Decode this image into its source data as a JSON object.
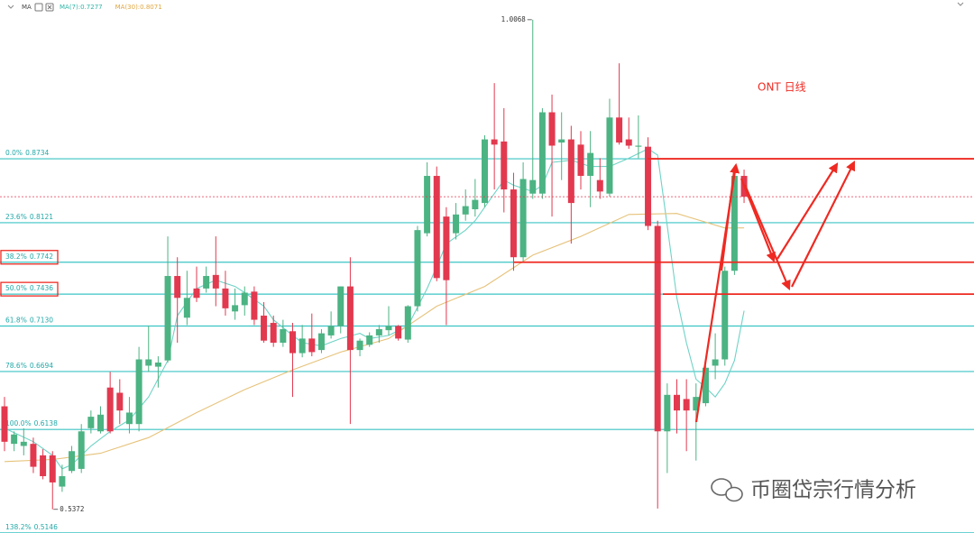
{
  "chart_data": {
    "type": "candlestick",
    "indicator": "MA",
    "annotation": "ONT 日线",
    "watermark": "币圈岱宗行情分析",
    "ylim": [
      0.5145,
      1.0257
    ],
    "up_color": "#4cb383",
    "down_color": "#e2394f",
    "fib_color": "#3cc4c4",
    "emphasis_color": "#ee2a22",
    "fib_levels": [
      {
        "ratio": "0.0%",
        "price": 0.8734,
        "emphasis": true
      },
      {
        "ratio": "23.6%",
        "price": 0.8121
      },
      {
        "ratio": "38.2%",
        "price": 0.7742,
        "emphasis": true,
        "boxed": true
      },
      {
        "ratio": "50.0%",
        "price": 0.7436,
        "emphasis": true,
        "boxed": true
      },
      {
        "ratio": "61.8%",
        "price": {
          "value": 0.713,
          "label": "0.7130"
        }
      },
      {
        "ratio": "78.6%",
        "price": 0.6694
      },
      {
        "ratio": "100.0%",
        "price": 0.6138
      },
      {
        "ratio": "138.2%",
        "price": 0.5146
      }
    ],
    "ma_series": [
      {
        "name": "MA(7):",
        "color": "#6fd3c6",
        "label_color": "#2fb5a6",
        "x": [
          0,
          3,
          5,
          6,
          7,
          9,
          11,
          13,
          15,
          17,
          18,
          20,
          22,
          24,
          25,
          27,
          28,
          30,
          31,
          33,
          35,
          37,
          38,
          40,
          42,
          44,
          45,
          46,
          48,
          49,
          51,
          52,
          53,
          55,
          56,
          57,
          59,
          61,
          63,
          65,
          67,
          68,
          69,
          70,
          71,
          72,
          73,
          74,
          75,
          76,
          77
        ],
        "values": [
          0.615,
          0.602,
          0.589,
          0.576,
          0.58,
          0.598,
          0.612,
          0.623,
          0.645,
          0.68,
          0.723,
          0.749,
          0.757,
          0.751,
          0.745,
          0.732,
          0.719,
          0.704,
          0.697,
          0.694,
          0.701,
          0.706,
          0.701,
          0.704,
          0.713,
          0.749,
          0.77,
          0.792,
          0.805,
          0.814,
          0.84,
          0.853,
          0.848,
          0.842,
          0.848,
          0.87,
          0.872,
          0.866,
          0.866,
          0.874,
          0.883,
          0.877,
          0.809,
          0.74,
          0.697,
          0.662,
          0.654,
          0.645,
          0.658,
          0.68,
          0.7277
        ]
      },
      {
        "name": "MA(30):",
        "color": "#e6c27a",
        "label_color": "#e0a640",
        "x": [
          0,
          5,
          10,
          15,
          20,
          25,
          30,
          35,
          40,
          45,
          50,
          55,
          60,
          65,
          70,
          75,
          77
        ],
        "values": [
          0.583,
          0.585,
          0.591,
          0.606,
          0.63,
          0.652,
          0.671,
          0.688,
          0.701,
          0.732,
          0.751,
          0.781,
          0.799,
          0.82,
          0.821,
          0.807,
          0.8071
        ]
      }
    ],
    "ohlc": [
      [
        0.636,
        0.645,
        0.593,
        0.602
      ],
      [
        0.6,
        0.612,
        0.593,
        0.609
      ],
      [
        0.598,
        0.615,
        0.589,
        0.602
      ],
      [
        0.6,
        0.606,
        0.572,
        0.578
      ],
      [
        0.589,
        0.595,
        0.566,
        0.569
      ],
      [
        0.589,
        0.593,
        0.5372,
        0.563
      ],
      [
        0.559,
        0.58,
        0.554,
        0.569
      ],
      [
        0.574,
        0.598,
        0.572,
        0.593
      ],
      [
        0.576,
        0.619,
        0.572,
        0.612
      ],
      [
        0.615,
        0.632,
        0.61,
        0.626
      ],
      [
        0.612,
        0.636,
        0.61,
        0.628
      ],
      [
        0.654,
        0.669,
        0.61,
        0.612
      ],
      [
        0.649,
        0.662,
        0.619,
        0.632
      ],
      [
        0.619,
        0.645,
        0.61,
        0.63
      ],
      [
        0.619,
        0.693,
        0.612,
        0.681
      ],
      [
        0.675,
        0.713,
        0.669,
        0.681
      ],
      [
        0.674,
        0.684,
        0.654,
        0.678
      ],
      [
        0.68,
        0.799,
        0.678,
        0.761
      ],
      [
        0.761,
        0.779,
        0.697,
        0.74
      ],
      [
        0.721,
        0.766,
        0.714,
        0.74
      ],
      [
        0.749,
        0.77,
        0.736,
        0.74
      ],
      [
        0.749,
        0.77,
        0.745,
        0.761
      ],
      [
        0.762,
        0.799,
        0.732,
        0.749
      ],
      [
        0.749,
        0.766,
        0.723,
        0.73
      ],
      [
        0.727,
        0.749,
        0.719,
        0.733
      ],
      [
        0.733,
        0.751,
        0.723,
        0.745
      ],
      [
        0.746,
        0.751,
        0.714,
        0.719
      ],
      [
        0.723,
        0.736,
        0.697,
        0.699
      ],
      [
        0.716,
        0.723,
        0.693,
        0.697
      ],
      [
        0.697,
        0.719,
        0.693,
        0.71
      ],
      [
        0.708,
        0.716,
        0.645,
        0.687
      ],
      [
        0.687,
        0.714,
        0.683,
        0.701
      ],
      [
        0.701,
        0.725,
        0.684,
        0.688
      ],
      [
        0.69,
        0.71,
        0.687,
        0.706
      ],
      [
        0.704,
        0.727,
        0.701,
        0.713
      ],
      [
        0.713,
        0.751,
        0.706,
        0.751
      ],
      [
        0.751,
        0.779,
        0.619,
        0.69
      ],
      [
        0.69,
        0.701,
        0.684,
        0.699
      ],
      [
        0.695,
        0.707,
        0.693,
        0.704
      ],
      [
        0.704,
        0.714,
        0.697,
        0.71
      ],
      [
        0.709,
        0.732,
        0.704,
        0.713
      ],
      [
        0.713,
        0.714,
        0.699,
        0.701
      ],
      [
        0.7,
        0.733,
        0.697,
        0.732
      ],
      [
        0.732,
        0.809,
        0.727,
        0.805
      ],
      [
        0.802,
        0.87,
        0.799,
        0.857
      ],
      [
        0.857,
        0.866,
        0.756,
        0.759
      ],
      [
        0.818,
        0.827,
        0.714,
        0.757
      ],
      [
        0.802,
        0.831,
        0.796,
        0.82
      ],
      [
        0.82,
        0.844,
        0.814,
        0.828
      ],
      [
        0.825,
        0.854,
        0.818,
        0.834
      ],
      [
        0.831,
        0.896,
        0.827,
        0.892
      ],
      [
        0.892,
        0.946,
        0.844,
        0.887
      ],
      [
        0.89,
        0.922,
        0.822,
        0.844
      ],
      [
        0.844,
        0.86,
        0.766,
        0.779
      ],
      [
        0.779,
        0.87,
        0.775,
        0.854
      ],
      [
        0.84,
        1.0068,
        0.835,
        0.853
      ],
      [
        0.84,
        0.922,
        0.835,
        0.918
      ],
      [
        0.918,
        0.935,
        0.818,
        0.886
      ],
      [
        0.889,
        0.918,
        0.853,
        0.892
      ],
      [
        0.892,
        0.905,
        0.792,
        0.831
      ],
      [
        0.887,
        0.9,
        0.844,
        0.857
      ],
      [
        0.857,
        0.9,
        0.827,
        0.879
      ],
      [
        0.853,
        0.874,
        0.835,
        0.842
      ],
      [
        0.84,
        0.931,
        0.837,
        0.913
      ],
      [
        0.913,
        0.965,
        0.887,
        0.889
      ],
      [
        0.892,
        0.913,
        0.883,
        0.886
      ],
      [
        0.885,
        0.915,
        0.874,
        0.886
      ],
      [
        0.885,
        0.894,
        0.805,
        0.809
      ],
      [
        0.809,
        0.814,
        0.538,
        0.612
      ],
      [
        0.612,
        0.658,
        0.572,
        0.647
      ],
      [
        0.647,
        0.662,
        0.61,
        0.632
      ],
      [
        0.643,
        0.662,
        0.593,
        0.632
      ],
      [
        0.632,
        0.658,
        0.584,
        0.645
      ],
      [
        0.639,
        0.675,
        0.636,
        0.673
      ],
      [
        0.675,
        0.706,
        0.662,
        0.681
      ],
      [
        0.681,
        0.77,
        0.675,
        0.766
      ],
      [
        0.766,
        0.861,
        0.762,
        0.857
      ],
      [
        0.857,
        0.863,
        0.831,
        0.837
      ]
    ]
  }
}
